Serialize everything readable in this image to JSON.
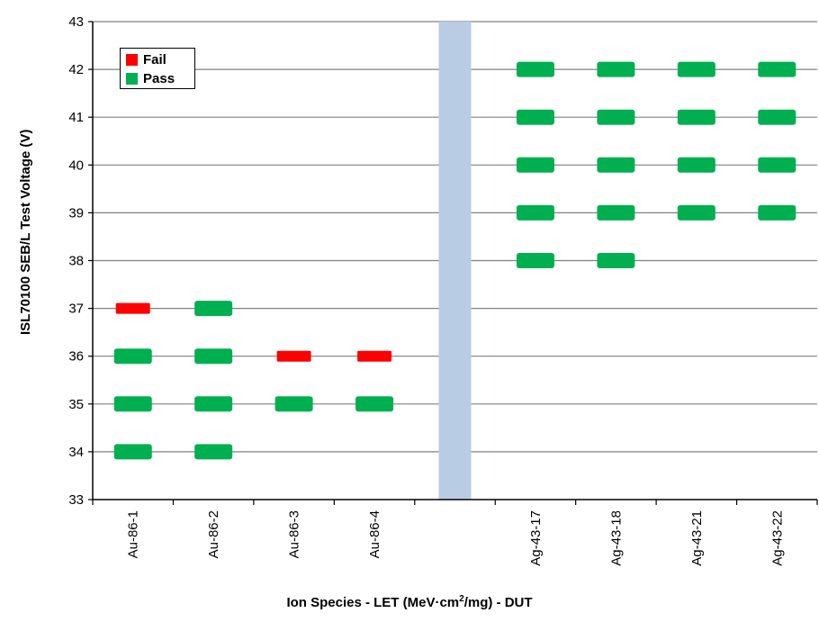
{
  "chart_data": {
    "type": "scatter",
    "ylabel": "ISL70100 SEB/L Test Voltage (V)",
    "xlabel_parts": {
      "before": "Ion Species - LET (MeV·cm",
      "sup": "2",
      "after": "/mg) - DUT"
    },
    "ylim": [
      33,
      43
    ],
    "yticks": [
      33,
      34,
      35,
      36,
      37,
      38,
      39,
      40,
      41,
      42,
      43
    ],
    "categories": [
      "Au-86-1",
      "Au-86-2",
      "Au-86-3",
      "Au-86-4",
      "",
      "Ag-43-17",
      "Ag-43-18",
      "Ag-43-21",
      "Ag-43-22"
    ],
    "grid": true,
    "legend_position": "top-left",
    "separator_category_index": 4,
    "colors": {
      "fail": "#ff0000",
      "pass": "#00b050",
      "separator": "#b8cce4"
    },
    "series": [
      {
        "name": "Fail",
        "points": [
          {
            "category": "Au-86-1",
            "y": 37
          },
          {
            "category": "Au-86-3",
            "y": 36
          },
          {
            "category": "Au-86-4",
            "y": 36
          }
        ]
      },
      {
        "name": "Pass",
        "points": [
          {
            "category": "Au-86-1",
            "y": 36
          },
          {
            "category": "Au-86-1",
            "y": 35
          },
          {
            "category": "Au-86-1",
            "y": 34
          },
          {
            "category": "Au-86-2",
            "y": 37
          },
          {
            "category": "Au-86-2",
            "y": 36
          },
          {
            "category": "Au-86-2",
            "y": 35
          },
          {
            "category": "Au-86-2",
            "y": 34
          },
          {
            "category": "Au-86-3",
            "y": 35
          },
          {
            "category": "Au-86-4",
            "y": 35
          },
          {
            "category": "Ag-43-17",
            "y": 42
          },
          {
            "category": "Ag-43-17",
            "y": 41
          },
          {
            "category": "Ag-43-17",
            "y": 40
          },
          {
            "category": "Ag-43-17",
            "y": 39
          },
          {
            "category": "Ag-43-17",
            "y": 38
          },
          {
            "category": "Ag-43-18",
            "y": 42
          },
          {
            "category": "Ag-43-18",
            "y": 41
          },
          {
            "category": "Ag-43-18",
            "y": 40
          },
          {
            "category": "Ag-43-18",
            "y": 39
          },
          {
            "category": "Ag-43-18",
            "y": 38
          },
          {
            "category": "Ag-43-21",
            "y": 42
          },
          {
            "category": "Ag-43-21",
            "y": 41
          },
          {
            "category": "Ag-43-21",
            "y": 40
          },
          {
            "category": "Ag-43-21",
            "y": 39
          },
          {
            "category": "Ag-43-22",
            "y": 42
          },
          {
            "category": "Ag-43-22",
            "y": 41
          },
          {
            "category": "Ag-43-22",
            "y": 40
          },
          {
            "category": "Ag-43-22",
            "y": 39
          }
        ]
      }
    ]
  }
}
